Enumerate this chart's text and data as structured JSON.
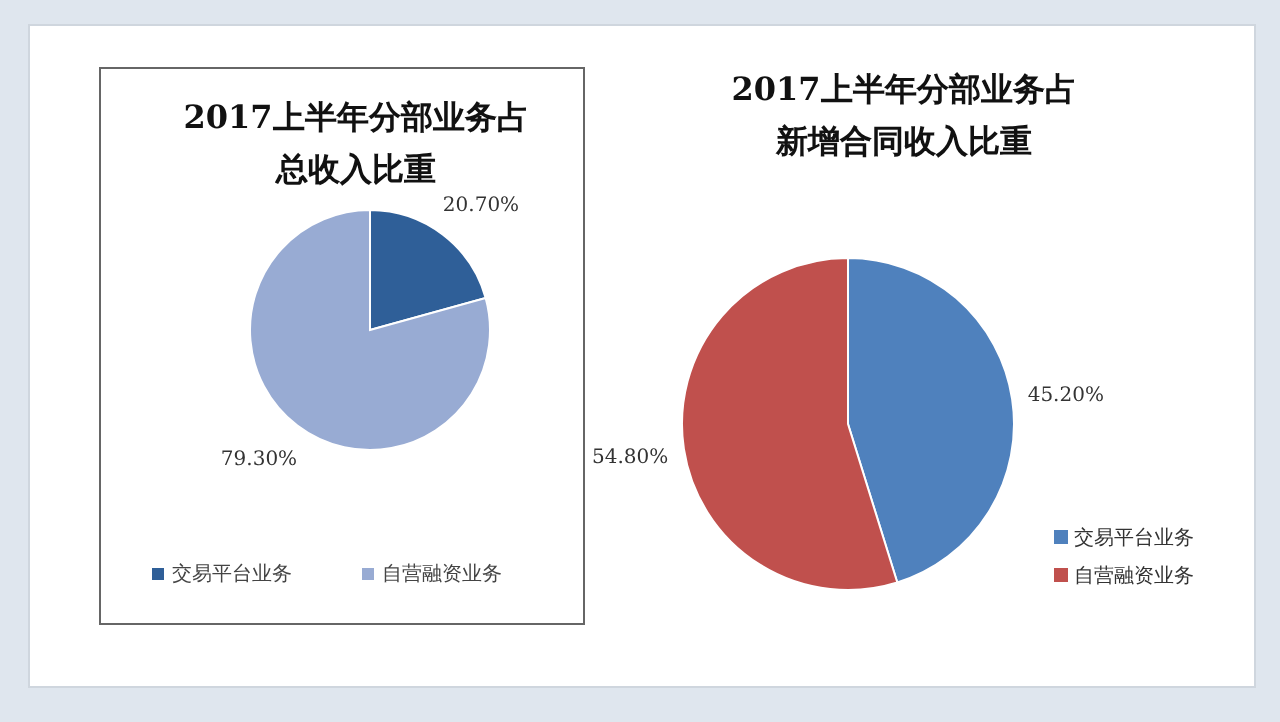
{
  "chart_data": [
    {
      "type": "pie",
      "title": "2017上半年分部业务占总收入比重",
      "categories": [
        "交易平台业务",
        "自营融资业务"
      ],
      "values": [
        20.7,
        79.3
      ],
      "colors": [
        "#2f5f98",
        "#98abd3"
      ],
      "value_labels": [
        "20.70%",
        "79.30%"
      ],
      "legend": "bottom"
    },
    {
      "type": "pie",
      "title": "2017上半年分部业务占新增合同收入比重",
      "categories": [
        "交易平台业务",
        "自营融资业务"
      ],
      "values": [
        45.2,
        54.8
      ],
      "colors": [
        "#4f81bd",
        "#c0504d"
      ],
      "value_labels": [
        "45.20%",
        "54.80%"
      ],
      "legend": "bottom right"
    }
  ]
}
